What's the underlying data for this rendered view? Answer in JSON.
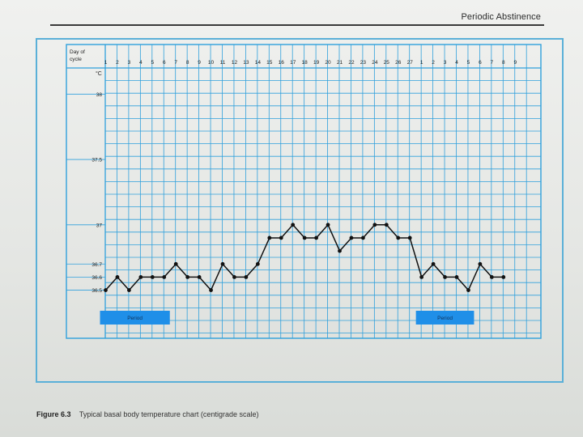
{
  "running_head": "Periodic Abstinence",
  "caption": {
    "figure": "Figure 6.3",
    "text": "Typical basal body temperature chart (centigrade scale)"
  },
  "colors": {
    "grid": "#2fa0dc",
    "frame": "#5ab0d8",
    "period_box": "#1f8fe8",
    "line": "#111111"
  },
  "chart_data": {
    "type": "line",
    "title": "",
    "xlabel": "Day of cycle",
    "ylabel": "°C",
    "x_tick_labels": [
      "1",
      "2",
      "3",
      "4",
      "5",
      "6",
      "7",
      "8",
      "9",
      "10",
      "11",
      "12",
      "13",
      "14",
      "15",
      "16",
      "17",
      "18",
      "19",
      "20",
      "21",
      "22",
      "23",
      "24",
      "25",
      "26",
      "27",
      "1",
      "2",
      "3",
      "4",
      "5",
      "6",
      "7",
      "8",
      "9"
    ],
    "y_tick_labels": [
      {
        "label": "38",
        "value": 38.0
      },
      {
        "label": "37.5",
        "value": 37.5
      },
      {
        "label": "37",
        "value": 37.0
      },
      {
        "label": "36.7",
        "value": 36.7
      },
      {
        "label": "36.6",
        "value": 36.6
      },
      {
        "label": "36.5",
        "value": 36.5
      }
    ],
    "ylim": [
      36.2,
      38.2
    ],
    "grid": true,
    "series": [
      {
        "values": [
          36.5,
          36.6,
          36.5,
          36.6,
          36.6,
          36.6,
          36.7,
          36.6,
          36.6,
          36.5,
          36.7,
          36.6,
          36.6,
          36.7,
          36.9,
          36.9,
          37.0,
          36.9,
          36.9,
          37.0,
          36.8,
          36.9,
          36.9,
          37.0,
          37.0,
          36.9,
          36.9,
          36.6,
          36.7,
          36.6,
          36.6,
          36.5,
          36.7,
          36.6,
          36.6
        ]
      }
    ],
    "annotations": [
      {
        "text": "Period",
        "from_index": 0,
        "to_index": 5
      },
      {
        "text": "Period",
        "from_index": 27,
        "to_index": 31
      }
    ]
  }
}
